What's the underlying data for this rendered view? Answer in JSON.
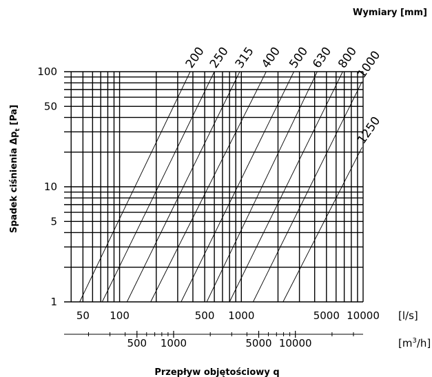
{
  "chart_data": {
    "type": "line",
    "title": "Wymiary [mm]",
    "xlabel": "Przepływ objętościowy q",
    "ylabel_main": "Spadek ciśnienia Δp",
    "ylabel_sub": "t",
    "ylabel_unit": " [Pa]",
    "xunit_primary": "[l/s]",
    "xunit_secondary_base": "[m",
    "xunit_secondary_sup": "3",
    "xunit_secondary_end": "/h]",
    "x_scale": "log",
    "y_scale": "log",
    "xlim": [
      35,
      10000
    ],
    "ylim": [
      1,
      100
    ],
    "grid": true,
    "y_ticks": [
      {
        "value": 1,
        "label": "1"
      },
      {
        "value": 5,
        "label": "5"
      },
      {
        "value": 10,
        "label": "10"
      },
      {
        "value": 50,
        "label": "50"
      },
      {
        "value": 100,
        "label": "100"
      }
    ],
    "x_ticks_primary": [
      {
        "value": 50,
        "label": "50"
      },
      {
        "value": 100,
        "label": "100"
      },
      {
        "value": 500,
        "label": "500"
      },
      {
        "value": 1000,
        "label": "1000"
      },
      {
        "value": 5000,
        "label": "5000"
      },
      {
        "value": 10000,
        "label": "10000"
      }
    ],
    "x_ticks_secondary": [
      {
        "value": 500,
        "label": "500"
      },
      {
        "value": 1000,
        "label": "1000"
      },
      {
        "value": 5000,
        "label": "5000"
      },
      {
        "value": 10000,
        "label": "10000"
      }
    ],
    "x_secondary_minor": [
      200,
      300,
      400,
      600,
      700,
      800,
      900,
      2000,
      3000,
      4000,
      6000,
      7000,
      8000,
      9000,
      20000,
      30000
    ],
    "series": [
      {
        "name": "200",
        "points": [
          [
            47,
            1
          ],
          [
            380,
            100
          ]
        ]
      },
      {
        "name": "250",
        "points": [
          [
            72,
            1
          ],
          [
            600,
            100
          ]
        ]
      },
      {
        "name": "315",
        "points": [
          [
            115,
            1
          ],
          [
            970,
            100
          ]
        ]
      },
      {
        "name": "400",
        "points": [
          [
            180,
            1
          ],
          [
            1600,
            100
          ]
        ]
      },
      {
        "name": "500",
        "points": [
          [
            320,
            1
          ],
          [
            2700,
            100
          ]
        ]
      },
      {
        "name": "630",
        "points": [
          [
            520,
            1
          ],
          [
            4200,
            100
          ]
        ]
      },
      {
        "name": "800",
        "points": [
          [
            800,
            1
          ],
          [
            6800,
            100
          ]
        ]
      },
      {
        "name": "1000",
        "points": [
          [
            1250,
            1
          ],
          [
            9800,
            82
          ]
        ]
      },
      {
        "name": "1250",
        "points": [
          [
            2200,
            1
          ],
          [
            9800,
            22
          ]
        ]
      }
    ]
  }
}
